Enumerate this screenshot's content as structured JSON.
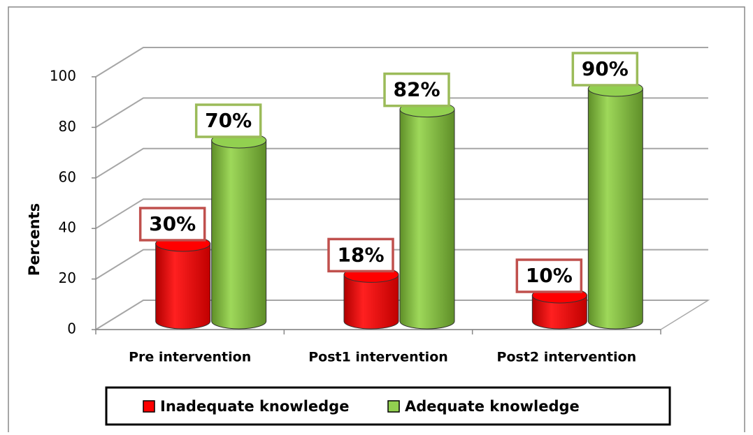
{
  "chart_data": {
    "type": "bar3d",
    "y_label": "Percents",
    "categories": [
      "Pre intervention",
      "Post1 intervention",
      "Post2 intervention"
    ],
    "series": [
      {
        "name": "Inadequate knowledge",
        "color": "#ff0000",
        "border": "#c0504d",
        "values": [
          30,
          18,
          10
        ],
        "value_labels": [
          "30%",
          "18%",
          "10%"
        ]
      },
      {
        "name": "Adequate knowledge",
        "color": "#92d050",
        "border": "#9bbb59",
        "values": [
          70,
          82,
          90
        ],
        "value_labels": [
          "70%",
          "82%",
          "90%"
        ]
      }
    ],
    "ylim": [
      0,
      100
    ],
    "yticks": [
      0,
      20,
      40,
      60,
      80,
      100
    ],
    "grid": true,
    "legend": "bottom"
  }
}
